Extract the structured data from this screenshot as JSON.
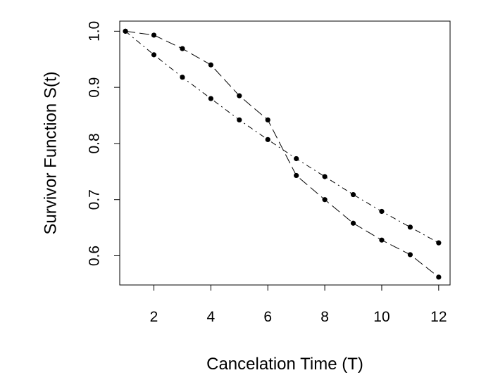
{
  "chart_data": {
    "type": "line",
    "title": "",
    "xlabel": "Cancelation Time (T)",
    "ylabel": "Survivor Function S(t)",
    "xlim": [
      0.8,
      12.4
    ],
    "ylim": [
      0.548,
      1.018
    ],
    "xticks": [
      2,
      4,
      6,
      8,
      10,
      12
    ],
    "yticks": [
      0.6,
      0.7,
      0.8,
      0.9,
      1.0
    ],
    "xtick_labels": [
      "2",
      "4",
      "6",
      "8",
      "10",
      "12"
    ],
    "ytick_labels": [
      "0.6",
      "0.7",
      "0.8",
      "0.9",
      "1.0"
    ],
    "grid": false,
    "series": [
      {
        "line_style": "long-dash",
        "x": [
          1,
          2,
          3,
          4,
          5,
          6,
          7,
          8,
          9,
          10,
          11,
          12
        ],
        "y": [
          1.0,
          0.993,
          0.969,
          0.94,
          0.885,
          0.842,
          0.743,
          0.7,
          0.658,
          0.628,
          0.602,
          0.562
        ]
      },
      {
        "line_style": "dash-dot",
        "x": [
          1,
          2,
          3,
          4,
          5,
          6,
          7,
          8,
          9,
          10,
          11,
          12
        ],
        "y": [
          1.0,
          0.958,
          0.918,
          0.88,
          0.842,
          0.807,
          0.773,
          0.741,
          0.709,
          0.679,
          0.651,
          0.623
        ]
      }
    ]
  }
}
